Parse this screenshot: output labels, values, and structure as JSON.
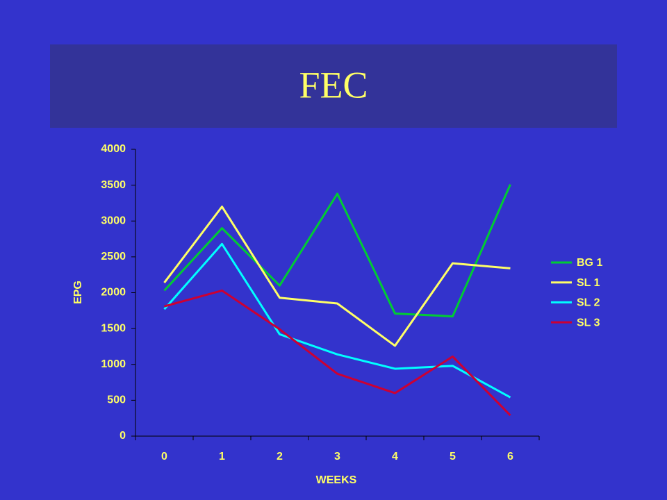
{
  "chart_data": {
    "type": "line",
    "title": "FEC",
    "x_label": "WEEKS",
    "y_label": "EPG",
    "categories": [
      "0",
      "1",
      "2",
      "3",
      "4",
      "5",
      "6"
    ],
    "series": [
      {
        "name": "BG 1",
        "color": "#00cc33",
        "values": [
          2030,
          2900,
          2100,
          3380,
          1710,
          1670,
          3510
        ]
      },
      {
        "name": "SL 1",
        "color": "#ffff66",
        "values": [
          2140,
          3200,
          1930,
          1850,
          1260,
          2410,
          2340
        ]
      },
      {
        "name": "SL 2",
        "color": "#00ffff",
        "values": [
          1770,
          2680,
          1420,
          1140,
          940,
          980,
          540
        ]
      },
      {
        "name": "SL 3",
        "color": "#cc0033",
        "values": [
          1810,
          2030,
          1490,
          870,
          600,
          1110,
          290
        ]
      }
    ],
    "ylim": [
      0,
      4000
    ],
    "yticks": [
      0,
      500,
      1000,
      1500,
      2000,
      2500,
      3000,
      3500,
      4000
    ],
    "grid": false,
    "legend": "right"
  }
}
